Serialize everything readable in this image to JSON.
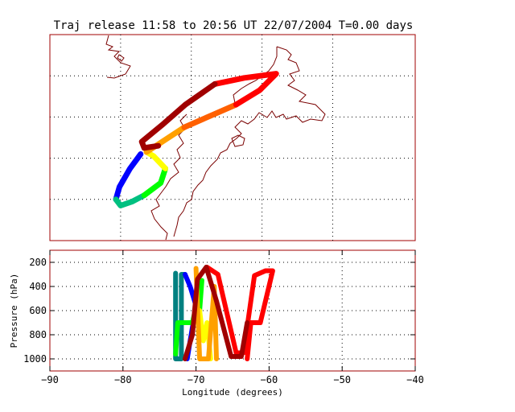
{
  "title": "Traj release 11:58 to 20:56 UT 22/07/2004    T=0.00 days",
  "colors": {
    "frame": "#a00000",
    "coastline": "#7a0000",
    "trajectory_scale": [
      "#0000ff",
      "#00a0ff",
      "#00c080",
      "#00ff00",
      "#ffff00",
      "#ffa000",
      "#ff6000",
      "#ff0000",
      "#a00000"
    ]
  },
  "chart_data": [
    {
      "type": "line",
      "panel": "map",
      "title": "Traj release 11:58 to 20:56 UT 22/07/2004    T=0.00 days",
      "xlabel": "",
      "ylabel": "",
      "xlim": [
        -90,
        -40
      ],
      "grid": true,
      "series": [
        {
          "color": "#0000ff",
          "lon": [
            -71.3,
            -72.2,
            -73.1,
            -73.4
          ],
          "lat": [
            0.6,
            0.25,
            -0.2,
            -0.5
          ]
        },
        {
          "color": "#00c080",
          "lon": [
            -73.4,
            -73.0,
            -72.0,
            -71.0
          ],
          "lat": [
            -0.5,
            -0.65,
            -0.55,
            -0.4
          ]
        },
        {
          "color": "#00ff00",
          "lon": [
            -71.0,
            -69.6,
            -69.2
          ],
          "lat": [
            -0.4,
            -0.1,
            0.25
          ]
        },
        {
          "color": "#ffff00",
          "lon": [
            -69.2,
            -70.2,
            -70.8
          ],
          "lat": [
            0.25,
            0.55,
            0.65
          ]
        },
        {
          "color": "#ffa000",
          "lon": [
            -70.8,
            -69.2,
            -67.6
          ],
          "lat": [
            0.65,
            0.95,
            1.25
          ]
        },
        {
          "color": "#ff6000",
          "lon": [
            -67.6,
            -65.2,
            -63.2
          ],
          "lat": [
            1.25,
            1.55,
            1.8
          ]
        },
        {
          "color": "#ff0000",
          "lon": [
            -63.2,
            -61.2,
            -59.8,
            -62.5,
            -65.0
          ],
          "lat": [
            1.8,
            2.15,
            2.55,
            2.45,
            2.3
          ]
        },
        {
          "color": "#a00000",
          "lon": [
            -65.0,
            -67.5,
            -69.5,
            -71.2,
            -71.0,
            -69.8
          ],
          "lat": [
            2.3,
            1.8,
            1.3,
            0.9,
            0.75,
            0.8
          ]
        }
      ]
    },
    {
      "type": "line",
      "panel": "pressure",
      "title": "",
      "xlabel": "Longitude  (degrees)",
      "ylabel": "Pressure  (hPa)",
      "xlim": [
        -90,
        -40
      ],
      "xticks": [
        -90,
        -80,
        -70,
        -60,
        -50,
        -40
      ],
      "ylim": [
        1100,
        100
      ],
      "yticks": [
        200,
        400,
        600,
        800,
        1000
      ],
      "grid": true,
      "series": [
        {
          "color": "#008080",
          "x": [
            -72.8,
            -72.8,
            -72.0,
            -72.0,
            -71.5
          ],
          "y": [
            290,
            1000,
            1000,
            300,
            300
          ]
        },
        {
          "color": "#0000ff",
          "x": [
            -71.5,
            -70.8,
            -70.0,
            -70.8,
            -71.2
          ],
          "y": [
            300,
            400,
            560,
            850,
            1000
          ]
        },
        {
          "color": "#00ff00",
          "x": [
            -72.8,
            -72.5,
            -70.5,
            -69.2,
            -69.5
          ],
          "y": [
            960,
            700,
            700,
            350,
            600
          ]
        },
        {
          "color": "#ffff00",
          "x": [
            -69.5,
            -69.0,
            -68.5,
            -68.0
          ],
          "y": [
            600,
            850,
            700,
            1000
          ]
        },
        {
          "color": "#ffa000",
          "x": [
            -70.0,
            -69.5,
            -68.3,
            -67.5,
            -67.2
          ],
          "y": [
            250,
            1000,
            1000,
            400,
            1000
          ]
        },
        {
          "color": "#ff0000",
          "x": [
            -68.5,
            -67.0,
            -64.5,
            -63.5,
            -62.0,
            -60.5,
            -59.5,
            -61.2,
            -62.5,
            -63.0
          ],
          "y": [
            240,
            300,
            950,
            950,
            310,
            270,
            270,
            700,
            700,
            1000
          ]
        },
        {
          "color": "#a00000",
          "x": [
            -71.5,
            -70.5,
            -69.8,
            -68.6,
            -67.2,
            -65.2,
            -63.8,
            -63.0
          ],
          "y": [
            1000,
            800,
            340,
            240,
            520,
            980,
            980,
            700
          ]
        }
      ]
    }
  ],
  "map": {
    "lon_range": [
      -79,
      -48
    ],
    "lat_range": [
      -1.5,
      3.5
    ],
    "grid_lon": [
      -79,
      -73,
      -67,
      -61,
      -55
    ],
    "grid_lat": [
      -0.5,
      0.5,
      1.5,
      2.5
    ]
  }
}
